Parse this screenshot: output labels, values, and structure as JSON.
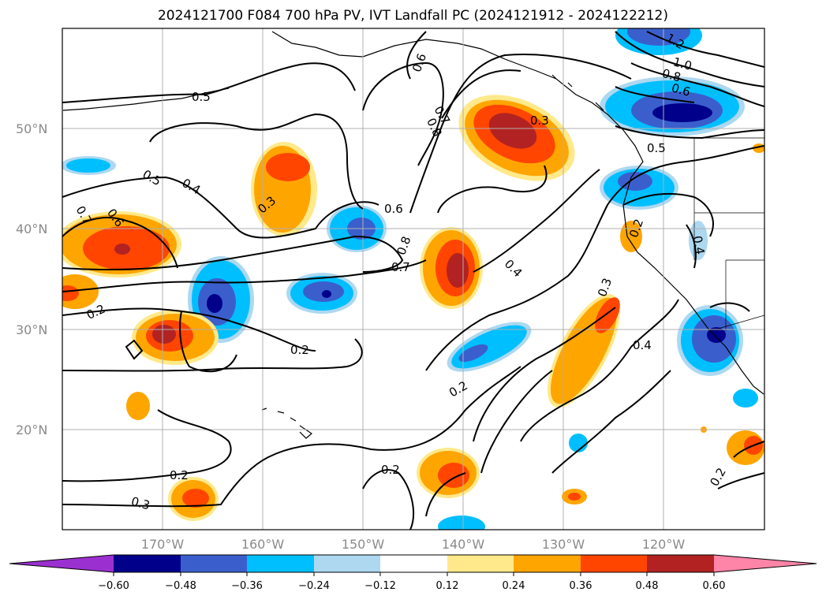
{
  "title": "2024121700 F084 700 hPa PV, IVT Landfall PC (2024121912 - 2024122212)",
  "map": {
    "lat_labels": [
      "50°N",
      "40°N",
      "30°N",
      "20°N"
    ],
    "lon_labels": [
      "170°W",
      "160°W",
      "150°W",
      "140°W",
      "130°W",
      "120°W"
    ],
    "contour_labels": [
      "0.5",
      "0.4",
      "0.5",
      "0.7",
      "0.6",
      "0.3",
      "0.2",
      "0.2",
      "0.6",
      "0.8",
      "0.7",
      "0.6",
      "0.8",
      "0.7",
      "0.3",
      "0.4",
      "0.2",
      "0.2",
      "0.3",
      "0.4",
      "0.2",
      "0.2",
      "0.3",
      "1.2",
      "1.0",
      "0.8",
      "0.6",
      "0.5",
      "0.2",
      "0.4"
    ],
    "land_color": "#000000",
    "grid_color": "#b0b0b0"
  },
  "colorbar": {
    "ticks": [
      "−0.60",
      "−0.48",
      "−0.36",
      "−0.24",
      "−0.12",
      "0.12",
      "0.24",
      "0.36",
      "0.48",
      "0.60"
    ],
    "colors": [
      "#9b30d0",
      "#00008b",
      "#3a5fcd",
      "#00bfff",
      "#add8f0",
      "#ffffff",
      "#ffe98a",
      "#ffa500",
      "#ff4500",
      "#b22222",
      "#ff85a8"
    ]
  }
}
